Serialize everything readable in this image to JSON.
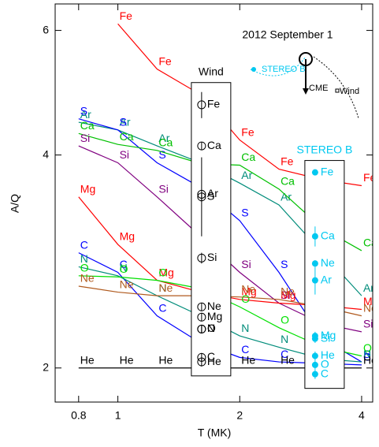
{
  "chart_data": {
    "type": "line",
    "xlabel": "T (MK)",
    "ylabel": "A/Q",
    "xscale": "log",
    "yscale": "log",
    "xlim": [
      0.7,
      4.26
    ],
    "ylim": [
      1.79,
      6.54
    ],
    "xticks": [
      0.8,
      1,
      2,
      4
    ],
    "yticks": [
      2,
      4,
      6
    ],
    "x": [
      0.8,
      1,
      1.25,
      1.6,
      2,
      2.5,
      3.2,
      4
    ],
    "series": [
      {
        "name": "Fe",
        "color": "#ff0000",
        "values": [
          null,
          6.13,
          5.29,
          4.87,
          4.2,
          3.82,
          3.69,
          3.62
        ]
      },
      {
        "name": "Ar",
        "color": "#008c7a",
        "values": [
          4.45,
          4.34,
          4.12,
          3.9,
          3.65,
          3.4,
          2.91,
          2.53
        ]
      },
      {
        "name": "S",
        "color": "#0000ff",
        "values": [
          4.5,
          4.34,
          3.9,
          3.6,
          3.23,
          2.73,
          2.2,
          2.04
        ]
      },
      {
        "name": "Ca",
        "color": "#00c000",
        "values": [
          4.29,
          4.14,
          4.06,
          3.89,
          3.87,
          3.58,
          3.15,
          2.93
        ]
      },
      {
        "name": "Si",
        "color": "#800080",
        "values": [
          4.12,
          3.9,
          3.49,
          3.07,
          2.73,
          2.47,
          2.31,
          2.25
        ]
      },
      {
        "name": "Mg",
        "color": "#ff0000",
        "values": [
          3.49,
          2.99,
          2.66,
          2.56,
          2.5,
          2.47,
          2.45,
          2.42
        ]
      },
      {
        "name": "C",
        "color": "#0000ff",
        "values": [
          2.91,
          2.73,
          2.37,
          2.17,
          2.07,
          2.04,
          2.03,
          2.02
        ]
      },
      {
        "name": "N",
        "color": "#008c7a",
        "values": [
          2.78,
          2.7,
          2.53,
          2.37,
          2.22,
          2.14,
          2.06,
          2.04
        ]
      },
      {
        "name": "O",
        "color": "#00e000",
        "values": [
          2.7,
          2.69,
          2.66,
          2.59,
          2.44,
          2.28,
          2.14,
          2.08
        ]
      },
      {
        "name": "Ne",
        "color": "#b05a1e",
        "values": [
          2.61,
          2.56,
          2.53,
          2.53,
          2.52,
          2.5,
          2.44,
          2.37
        ]
      },
      {
        "name": "He",
        "color": "#000000",
        "values": [
          2,
          2,
          2,
          2,
          2,
          2,
          2,
          2
        ]
      }
    ],
    "observations": [
      {
        "name": "Wind",
        "color": "#000000",
        "T": 1.61,
        "elements": [
          "Fe",
          "Ca",
          "Ar",
          "S",
          "Si",
          "Ne",
          "Mg",
          "N",
          "O",
          "C",
          "He"
        ],
        "values": [
          4.71,
          4.12,
          3.52,
          3.49,
          2.86,
          2.44,
          2.36,
          2.27,
          2.27,
          2.07,
          2.04
        ],
        "errors": [
          0.2,
          0.05,
          0.45,
          0.05,
          0.05,
          0.03,
          0.03,
          0.03,
          0.03,
          0.03,
          0.03
        ]
      },
      {
        "name": "STEREO B",
        "color": "#00c8f0",
        "T": 3.07,
        "elements": [
          "Fe",
          "Ca",
          "Ne",
          "Ar",
          "Mg",
          "Si",
          "He",
          "O",
          "C"
        ],
        "values": [
          3.78,
          3.07,
          2.81,
          2.66,
          2.22,
          2.2,
          2.08,
          2.02,
          1.96
        ],
        "errors": [
          0.03,
          0.1,
          0.03,
          0.12,
          0.03,
          0.03,
          0.03,
          0.03,
          0.03
        ]
      }
    ],
    "inset": {
      "title": "2012 September 1",
      "stereo": "STEREO B",
      "cme": "CME",
      "wind": "Wind"
    }
  }
}
